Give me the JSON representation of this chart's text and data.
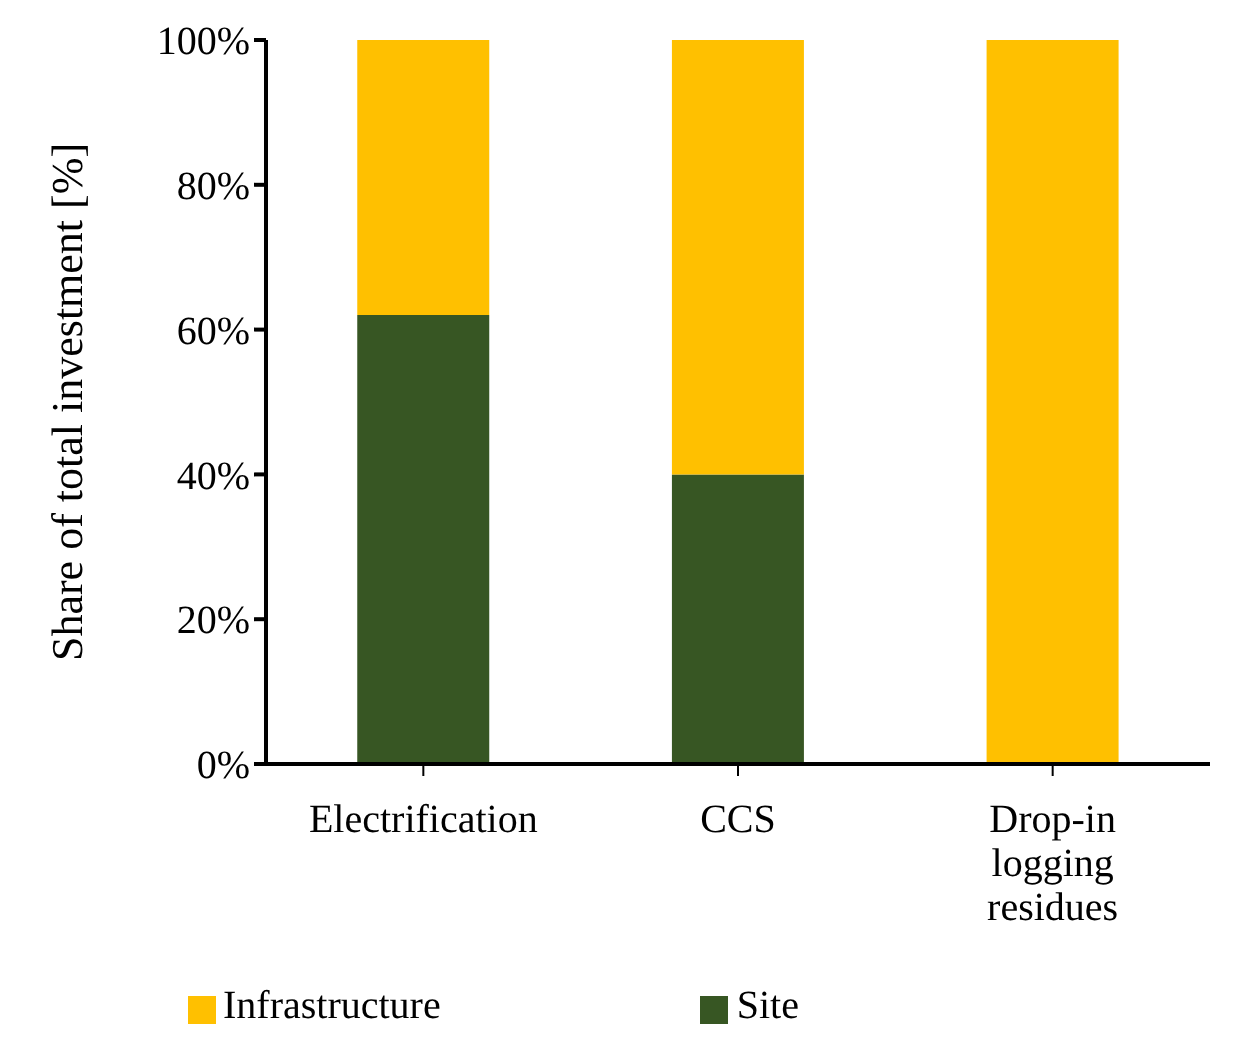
{
  "chart_data": {
    "type": "bar",
    "stacked": true,
    "ylabel": "Share of total investment [%]",
    "categories": [
      "Electrification",
      "CCS",
      "Drop-in logging residues"
    ],
    "series": [
      {
        "name": "Site",
        "color": "#375623",
        "values": [
          62,
          40,
          0
        ]
      },
      {
        "name": "Infrastructure",
        "color": "#ffc000",
        "values": [
          38,
          60,
          100
        ]
      }
    ],
    "ylim": [
      0,
      100
    ],
    "yticks": [
      {
        "value": 0,
        "label": "0%"
      },
      {
        "value": 20,
        "label": "20%"
      },
      {
        "value": 40,
        "label": "40%"
      },
      {
        "value": 60,
        "label": "60%"
      },
      {
        "value": 80,
        "label": "80%"
      },
      {
        "value": 100,
        "label": "100%"
      }
    ],
    "grid": false,
    "legend": "bottom"
  }
}
